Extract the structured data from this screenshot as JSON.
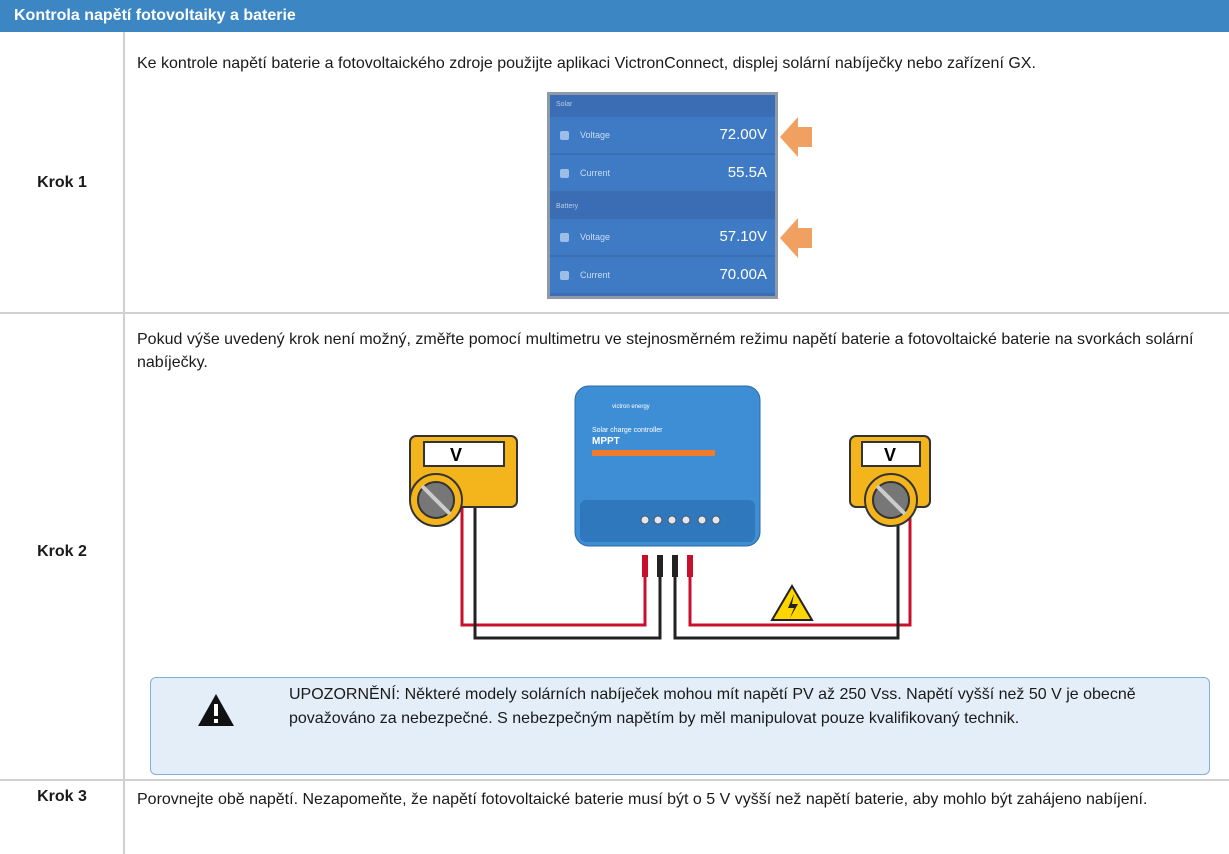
{
  "header": {
    "title": "Kontrola napětí fotovoltaiky a baterie"
  },
  "rows": [
    {
      "label": "Krok 1",
      "text": "Ke kontrole napětí baterie a fotovoltaického zdroje použijte aplikaci VictronConnect, displej solární nabíječky nebo zařízení GX.",
      "screen": {
        "sections": [
          {
            "title": "Solar",
            "items": [
              {
                "name": "Voltage",
                "value": "72.00V"
              },
              {
                "name": "Current",
                "value": "55.5A"
              }
            ]
          },
          {
            "title": "Battery",
            "items": [
              {
                "name": "Voltage",
                "value": "57.10V"
              },
              {
                "name": "Current",
                "value": "70.00A"
              }
            ]
          }
        ]
      }
    },
    {
      "label": "Krok 2",
      "text": "Pokud výše uvedený krok není možný, změřte pomocí multimetru ve stejnosměrném režimu napětí baterie a fotovoltaické baterie na svorkách solární nabíječky.",
      "diagram": {
        "brand": "victron energy",
        "product": "Solar charge controller",
        "model": "MPPT",
        "meter_left": "V",
        "meter_right": "V"
      },
      "warning": "UPOZORNĚNÍ: Některé modely solárních nabíječek mohou mít napětí PV až 250 Vss. Napětí vyšší než 50 V je obecně považováno za nebezpečné. S nebezpečným napětím by měl manipulovat pouze kvalifikovaný technik."
    },
    {
      "label": "Krok 3",
      "text": "Porovnejte obě napětí. Nezapomeňte, že napětí fotovoltaické baterie musí být o 5 V vyšší než napětí baterie, aby mohlo být zahájeno nabíjení."
    }
  ]
}
